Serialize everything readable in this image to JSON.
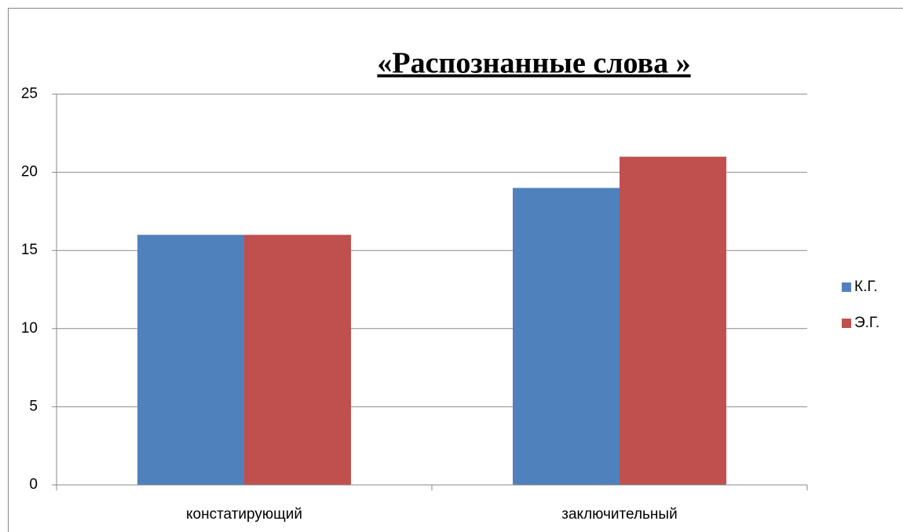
{
  "chart_data": {
    "type": "bar",
    "title": "«Распознанные слова »",
    "categories": [
      "констатирующий",
      "заключительный"
    ],
    "series": [
      {
        "name": "К.Г.",
        "color": "#4f81bd",
        "values": [
          16,
          19
        ]
      },
      {
        "name": "Э.Г.",
        "color": "#c0504d",
        "values": [
          16,
          21
        ]
      }
    ],
    "ylim": [
      0,
      25
    ],
    "yticks": [
      0,
      5,
      10,
      15,
      20,
      25
    ],
    "grid": true,
    "legend": "right"
  }
}
